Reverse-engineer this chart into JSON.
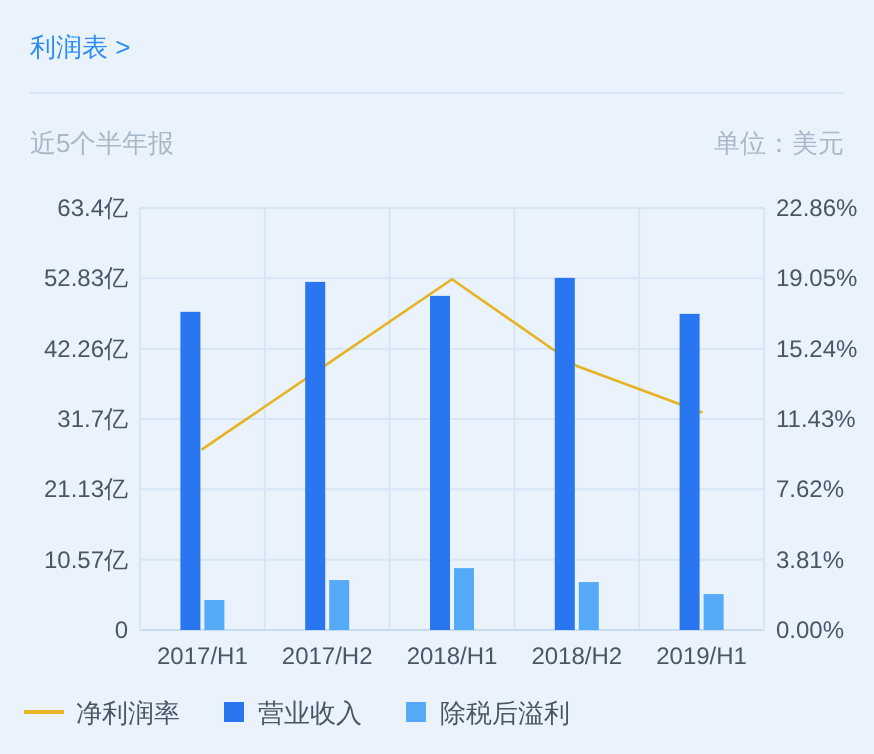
{
  "chart_data": {
    "type": "bar",
    "title": "利润表 >",
    "subtitle": "近5个半年报",
    "annotations": [
      "单位：美元"
    ],
    "categories": [
      "2017/H1",
      "2017/H2",
      "2018/H1",
      "2018/H2",
      "2019/H1"
    ],
    "series": [
      {
        "name": "净利润率",
        "type": "line",
        "axis": "y2",
        "color": "#e6b422",
        "values": [
          9.8,
          14.4,
          19.0,
          14.3,
          11.8
        ]
      },
      {
        "name": "营业收入",
        "type": "bar",
        "color": "#2a76f0",
        "values": [
          47.8,
          52.3,
          50.2,
          52.9,
          47.5
        ]
      },
      {
        "name": "除税后溢利",
        "type": "bar",
        "color": "#55aaf8",
        "values": [
          4.5,
          7.5,
          9.3,
          7.2,
          5.4
        ]
      }
    ],
    "ylim": [
      0,
      63.4
    ],
    "yticks": [
      {
        "value": 0,
        "label": "0"
      },
      {
        "value": 10.57,
        "label": "10.57亿"
      },
      {
        "value": 21.13,
        "label": "21.13亿"
      },
      {
        "value": 31.7,
        "label": "31.7亿"
      },
      {
        "value": 42.26,
        "label": "42.26亿"
      },
      {
        "value": 52.83,
        "label": "52.83亿"
      },
      {
        "value": 63.4,
        "label": "63.4亿"
      }
    ],
    "y2lim": [
      0,
      22.86
    ],
    "y2ticks": [
      {
        "value": 0,
        "label": "0.00%"
      },
      {
        "value": 3.81,
        "label": "3.81%"
      },
      {
        "value": 7.62,
        "label": "7.62%"
      },
      {
        "value": 11.43,
        "label": "11.43%"
      },
      {
        "value": 15.24,
        "label": "15.24%"
      },
      {
        "value": 19.05,
        "label": "19.05%"
      },
      {
        "value": 22.86,
        "label": "22.86%"
      }
    ],
    "grid": true,
    "legend": "bottom"
  }
}
